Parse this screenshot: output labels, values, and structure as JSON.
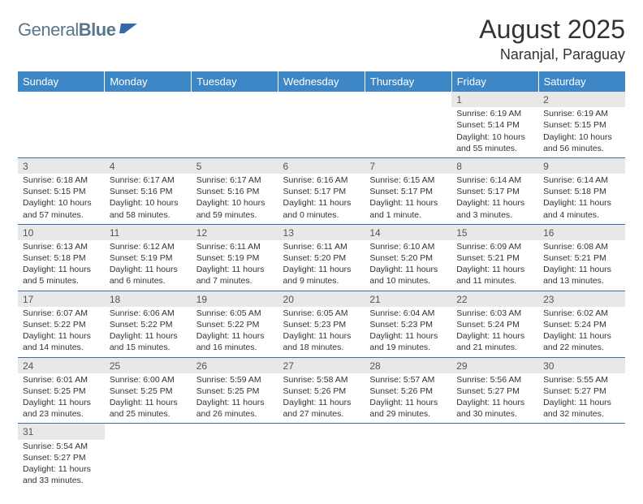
{
  "logo": {
    "text1": "General",
    "text2": "Blue"
  },
  "title": {
    "month": "August 2025",
    "location": "Naranjal, Paraguay"
  },
  "colors": {
    "header_bg": "#3d87c7",
    "row_divider": "#3d6da8",
    "daynum_bg": "#e8e8e8",
    "logo_color": "#5a768a",
    "logo_flag": "#2f69a8"
  },
  "weekdays": [
    "Sunday",
    "Monday",
    "Tuesday",
    "Wednesday",
    "Thursday",
    "Friday",
    "Saturday"
  ],
  "weeks": [
    [
      null,
      null,
      null,
      null,
      null,
      {
        "n": "1",
        "sr": "Sunrise: 6:19 AM",
        "ss": "Sunset: 5:14 PM",
        "dl": "Daylight: 10 hours and 55 minutes."
      },
      {
        "n": "2",
        "sr": "Sunrise: 6:19 AM",
        "ss": "Sunset: 5:15 PM",
        "dl": "Daylight: 10 hours and 56 minutes."
      }
    ],
    [
      {
        "n": "3",
        "sr": "Sunrise: 6:18 AM",
        "ss": "Sunset: 5:15 PM",
        "dl": "Daylight: 10 hours and 57 minutes."
      },
      {
        "n": "4",
        "sr": "Sunrise: 6:17 AM",
        "ss": "Sunset: 5:16 PM",
        "dl": "Daylight: 10 hours and 58 minutes."
      },
      {
        "n": "5",
        "sr": "Sunrise: 6:17 AM",
        "ss": "Sunset: 5:16 PM",
        "dl": "Daylight: 10 hours and 59 minutes."
      },
      {
        "n": "6",
        "sr": "Sunrise: 6:16 AM",
        "ss": "Sunset: 5:17 PM",
        "dl": "Daylight: 11 hours and 0 minutes."
      },
      {
        "n": "7",
        "sr": "Sunrise: 6:15 AM",
        "ss": "Sunset: 5:17 PM",
        "dl": "Daylight: 11 hours and 1 minute."
      },
      {
        "n": "8",
        "sr": "Sunrise: 6:14 AM",
        "ss": "Sunset: 5:17 PM",
        "dl": "Daylight: 11 hours and 3 minutes."
      },
      {
        "n": "9",
        "sr": "Sunrise: 6:14 AM",
        "ss": "Sunset: 5:18 PM",
        "dl": "Daylight: 11 hours and 4 minutes."
      }
    ],
    [
      {
        "n": "10",
        "sr": "Sunrise: 6:13 AM",
        "ss": "Sunset: 5:18 PM",
        "dl": "Daylight: 11 hours and 5 minutes."
      },
      {
        "n": "11",
        "sr": "Sunrise: 6:12 AM",
        "ss": "Sunset: 5:19 PM",
        "dl": "Daylight: 11 hours and 6 minutes."
      },
      {
        "n": "12",
        "sr": "Sunrise: 6:11 AM",
        "ss": "Sunset: 5:19 PM",
        "dl": "Daylight: 11 hours and 7 minutes."
      },
      {
        "n": "13",
        "sr": "Sunrise: 6:11 AM",
        "ss": "Sunset: 5:20 PM",
        "dl": "Daylight: 11 hours and 9 minutes."
      },
      {
        "n": "14",
        "sr": "Sunrise: 6:10 AM",
        "ss": "Sunset: 5:20 PM",
        "dl": "Daylight: 11 hours and 10 minutes."
      },
      {
        "n": "15",
        "sr": "Sunrise: 6:09 AM",
        "ss": "Sunset: 5:21 PM",
        "dl": "Daylight: 11 hours and 11 minutes."
      },
      {
        "n": "16",
        "sr": "Sunrise: 6:08 AM",
        "ss": "Sunset: 5:21 PM",
        "dl": "Daylight: 11 hours and 13 minutes."
      }
    ],
    [
      {
        "n": "17",
        "sr": "Sunrise: 6:07 AM",
        "ss": "Sunset: 5:22 PM",
        "dl": "Daylight: 11 hours and 14 minutes."
      },
      {
        "n": "18",
        "sr": "Sunrise: 6:06 AM",
        "ss": "Sunset: 5:22 PM",
        "dl": "Daylight: 11 hours and 15 minutes."
      },
      {
        "n": "19",
        "sr": "Sunrise: 6:05 AM",
        "ss": "Sunset: 5:22 PM",
        "dl": "Daylight: 11 hours and 16 minutes."
      },
      {
        "n": "20",
        "sr": "Sunrise: 6:05 AM",
        "ss": "Sunset: 5:23 PM",
        "dl": "Daylight: 11 hours and 18 minutes."
      },
      {
        "n": "21",
        "sr": "Sunrise: 6:04 AM",
        "ss": "Sunset: 5:23 PM",
        "dl": "Daylight: 11 hours and 19 minutes."
      },
      {
        "n": "22",
        "sr": "Sunrise: 6:03 AM",
        "ss": "Sunset: 5:24 PM",
        "dl": "Daylight: 11 hours and 21 minutes."
      },
      {
        "n": "23",
        "sr": "Sunrise: 6:02 AM",
        "ss": "Sunset: 5:24 PM",
        "dl": "Daylight: 11 hours and 22 minutes."
      }
    ],
    [
      {
        "n": "24",
        "sr": "Sunrise: 6:01 AM",
        "ss": "Sunset: 5:25 PM",
        "dl": "Daylight: 11 hours and 23 minutes."
      },
      {
        "n": "25",
        "sr": "Sunrise: 6:00 AM",
        "ss": "Sunset: 5:25 PM",
        "dl": "Daylight: 11 hours and 25 minutes."
      },
      {
        "n": "26",
        "sr": "Sunrise: 5:59 AM",
        "ss": "Sunset: 5:25 PM",
        "dl": "Daylight: 11 hours and 26 minutes."
      },
      {
        "n": "27",
        "sr": "Sunrise: 5:58 AM",
        "ss": "Sunset: 5:26 PM",
        "dl": "Daylight: 11 hours and 27 minutes."
      },
      {
        "n": "28",
        "sr": "Sunrise: 5:57 AM",
        "ss": "Sunset: 5:26 PM",
        "dl": "Daylight: 11 hours and 29 minutes."
      },
      {
        "n": "29",
        "sr": "Sunrise: 5:56 AM",
        "ss": "Sunset: 5:27 PM",
        "dl": "Daylight: 11 hours and 30 minutes."
      },
      {
        "n": "30",
        "sr": "Sunrise: 5:55 AM",
        "ss": "Sunset: 5:27 PM",
        "dl": "Daylight: 11 hours and 32 minutes."
      }
    ],
    [
      {
        "n": "31",
        "sr": "Sunrise: 5:54 AM",
        "ss": "Sunset: 5:27 PM",
        "dl": "Daylight: 11 hours and 33 minutes."
      },
      null,
      null,
      null,
      null,
      null,
      null
    ]
  ]
}
